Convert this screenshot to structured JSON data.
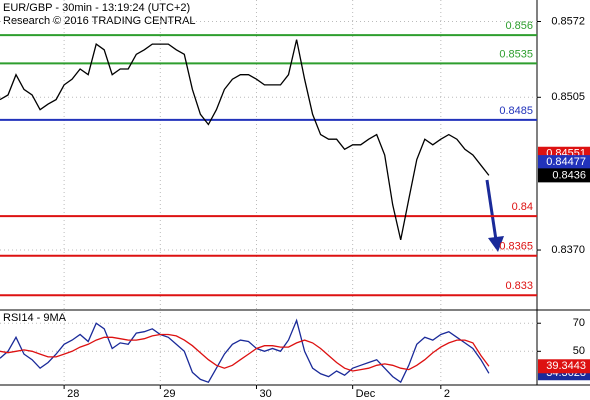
{
  "header": {
    "symbol_line": "EUR/GBP - 30min - 13:19:24 (UTC+2)",
    "copyright": "Research © 2016 TRADING CENTRAL"
  },
  "chart_data": [
    {
      "type": "line",
      "series": [
        {
          "color": "#000000",
          "values": [
            0.8503,
            0.8507,
            0.8525,
            0.8512,
            0.8507,
            0.8494,
            0.8499,
            0.8503,
            0.8516,
            0.8521,
            0.853,
            0.8525,
            0.8552,
            0.8547,
            0.8525,
            0.853,
            0.853,
            0.8543,
            0.8547,
            0.8552,
            0.8552,
            0.8552,
            0.8547,
            0.8543,
            0.8512,
            0.849,
            0.8481,
            0.8494,
            0.8512,
            0.8521,
            0.8525,
            0.8525,
            0.8521,
            0.8516,
            0.8516,
            0.8516,
            0.8525,
            0.8556,
            0.8521,
            0.849,
            0.8472,
            0.8468,
            0.8468,
            0.8459,
            0.8463,
            0.8463,
            0.8468,
            0.8472,
            0.8454,
            0.841,
            0.8379,
            0.8415,
            0.845,
            0.8468,
            0.8463,
            0.8468,
            0.8472,
            0.8468,
            0.8459,
            0.8454,
            0.8445,
            0.8436
          ]
        }
      ],
      "xlim": [
        0,
        67
      ],
      "xticks": [
        {
          "value": 8,
          "label": "28"
        },
        {
          "value": 20,
          "label": "29"
        },
        {
          "value": 32,
          "label": "30"
        },
        {
          "value": 44,
          "label": "Dec"
        },
        {
          "value": 55,
          "label": "2"
        }
      ],
      "ylim": [
        0.8317,
        0.8591
      ],
      "yticks": [
        0.8572,
        0.8505,
        {
          "value": 0.837,
          "label": "0.8370"
        }
      ],
      "levels": [
        {
          "value": 0.856,
          "color": "#2e9e2e"
        },
        {
          "value": 0.8535,
          "color": "#2e9e2e"
        },
        {
          "value": 0.8485,
          "color": "#2233bb"
        },
        {
          "value": 0.84,
          "color": "#dd1111"
        },
        {
          "value": 0.8365,
          "color": "#dd1111"
        },
        {
          "value": 0.833,
          "color": "#dd1111"
        }
      ],
      "price_tags": [
        {
          "value": 0.84551,
          "color": "#dd1111"
        },
        {
          "value": 0.84477,
          "color": "#2233bb"
        }
      ],
      "grid": true
    },
    {
      "type": "line",
      "title": "RSI14 - 9MA",
      "series": [
        {
          "color": "#1a2a99",
          "values": [
            45,
            50,
            60,
            48,
            44,
            38,
            42,
            48,
            55,
            58,
            62,
            57,
            70,
            66,
            52,
            56,
            55,
            63,
            64,
            66,
            62,
            60,
            55,
            50,
            35,
            30,
            28,
            38,
            48,
            55,
            58,
            57,
            52,
            50,
            52,
            50,
            58,
            72,
            50,
            38,
            34,
            32,
            36,
            33,
            38,
            40,
            42,
            44,
            38,
            32,
            28,
            40,
            55,
            60,
            58,
            62,
            64,
            60,
            56,
            52,
            44,
            34.3628
          ]
        },
        {
          "color": "#dd1111",
          "values": [
            50,
            49,
            50,
            51,
            50,
            48,
            46,
            46,
            48,
            50,
            53,
            55,
            58,
            60,
            60,
            59,
            58,
            58,
            59,
            61,
            62,
            62,
            61,
            58,
            54,
            49,
            44,
            40,
            38,
            40,
            44,
            48,
            52,
            54,
            54,
            53,
            53,
            56,
            58,
            56,
            52,
            47,
            42,
            38,
            36,
            37,
            38,
            40,
            41,
            40,
            38,
            37,
            40,
            44,
            49,
            53,
            56,
            58,
            58,
            56,
            47,
            39.3443
          ]
        }
      ],
      "xlim": [
        0,
        67
      ],
      "ylim": [
        26,
        78
      ],
      "yticks": [
        70,
        50
      ],
      "grid": true
    }
  ]
}
